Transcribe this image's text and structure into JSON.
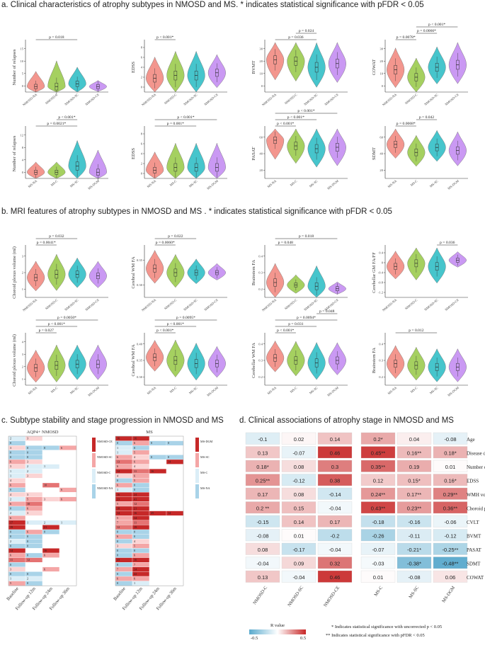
{
  "sections": {
    "a": "a. Clinical characteristics of atrophy subtypes in NMOSD and MS. * indicates statistical significance with pFDR < 0.05",
    "b": "b. MRI features of atrophy subtypes in NMOSD and MS . * indicates statistical significance with pFDR < 0.05",
    "c": "c. Subtype stability and stage progression in NMOSD and MS",
    "d": "d. Clinical associations of atrophy stage in NMOSD and MS"
  },
  "colors": {
    "g1": "#f28b82",
    "g2": "#9ccc4f",
    "g3": "#33bfc7",
    "g4": "#c58ef2"
  },
  "groups": {
    "nmosd_ce": [
      "NMOSD-NA",
      "NMOSD-C",
      "NMOSD-SC",
      "NMOSD-CE"
    ],
    "ms_dgm": [
      "MS-NA",
      "MS-C",
      "MS-SC",
      "MS-DGM"
    ]
  },
  "panels": [
    {
      "id": "a1",
      "ylabel": "Number of relapses",
      "groups": "nmosd_ce",
      "ylim": [
        0,
        18
      ],
      "yticks": [
        "0",
        "5",
        "10",
        "15"
      ],
      "medians": [
        2,
        2,
        3,
        2
      ],
      "spreads": [
        10,
        17,
        11,
        4
      ],
      "comparisons": [
        {
          "label": "p = 0.018",
          "from": 0,
          "to": 2
        }
      ]
    },
    {
      "id": "a2",
      "ylabel": "EDSS",
      "groups": "nmosd_ce",
      "ylim": [
        0,
        9
      ],
      "yticks": [
        "0",
        "2",
        "4",
        "6",
        "8"
      ],
      "medians": [
        2.5,
        3,
        3,
        3.5
      ],
      "spreads": [
        7,
        8,
        8,
        6
      ],
      "comparisons": [
        {
          "label": "p < 0.001*",
          "from": 0,
          "to": 1
        }
      ]
    },
    {
      "id": "a3",
      "ylabel": "BVMT",
      "groups": "nmosd_ce",
      "ylim": [
        0,
        40
      ],
      "yticks": [
        "0",
        "10",
        "20",
        "30"
      ],
      "medians": [
        26,
        25,
        20,
        23
      ],
      "spreads": [
        36,
        36,
        36,
        34
      ],
      "comparisons": [
        {
          "label": "p = 0.036",
          "from": 0,
          "to": 2
        },
        {
          "label": "p = 0.024",
          "from": 1,
          "to": 2
        }
      ]
    },
    {
      "id": "a4",
      "ylabel": "COWAT",
      "groups": "nmosd_ce",
      "ylim": [
        0,
        40
      ],
      "yticks": [
        "0",
        "10",
        "20",
        "30"
      ],
      "medians": [
        18,
        12,
        20,
        22
      ],
      "spreads": [
        32,
        28,
        30,
        34
      ],
      "comparisons": [
        {
          "label": "p = 0.0078*",
          "from": 0,
          "to": 1
        },
        {
          "label": "p = 0.0066*",
          "from": 1,
          "to": 2
        },
        {
          "label": "p < 0.001*",
          "from": 1,
          "to": 3
        }
      ]
    },
    {
      "id": "a5",
      "ylabel": "Number of relapses",
      "groups": "ms_dgm",
      "ylim": [
        0,
        16
      ],
      "yticks": [
        "0",
        "4",
        "8",
        "12"
      ],
      "medians": [
        2,
        2,
        4,
        2
      ],
      "spreads": [
        6,
        6,
        15,
        13
      ],
      "comparisons": [
        {
          "label": "p = 0.0021*",
          "from": 0,
          "to": 2
        },
        {
          "label": "p < 0.001*",
          "from": 1,
          "to": 2
        }
      ]
    },
    {
      "id": "a6",
      "ylabel": "EDSS",
      "groups": "ms_dgm",
      "ylim": [
        0,
        9
      ],
      "yticks": [
        "0",
        "2",
        "4",
        "6",
        "8"
      ],
      "medians": [
        1.5,
        2,
        2,
        2
      ],
      "spreads": [
        6,
        8,
        8,
        8
      ],
      "comparisons": [
        {
          "label": "p = 0.001*",
          "from": 0,
          "to": 2
        },
        {
          "label": "p < 0.001*",
          "from": 0,
          "to": 3
        }
      ]
    },
    {
      "id": "a7",
      "ylabel": "PASAT",
      "groups": "ms_dgm",
      "ylim": [
        0,
        70
      ],
      "yticks": [
        "20",
        "40",
        "60"
      ],
      "medians": [
        54,
        46,
        42,
        44
      ],
      "spreads": [
        60,
        55,
        58,
        58
      ],
      "comparisons": [
        {
          "label": "p < 0.001*",
          "from": 0,
          "to": 1
        },
        {
          "label": "p < 0.001*",
          "from": 0,
          "to": 2
        },
        {
          "label": "p < 0.001*",
          "from": 0,
          "to": 3
        }
      ]
    },
    {
      "id": "a8",
      "ylabel": "SDMT",
      "groups": "ms_dgm",
      "ylim": [
        0,
        80
      ],
      "yticks": [
        "20",
        "40",
        "60"
      ],
      "medians": [
        55,
        42,
        50,
        45
      ],
      "spreads": [
        50,
        50,
        50,
        55
      ],
      "comparisons": [
        {
          "label": "p = 0.0068*",
          "from": 0,
          "to": 1
        },
        {
          "label": "p = 0.042",
          "from": 1,
          "to": 2
        }
      ]
    },
    {
      "id": "b1",
      "ylabel": "Choroid plexus volume (ml)",
      "groups": "nmosd_ce",
      "ylim": [
        0.5,
        3.5
      ],
      "yticks": [
        "1",
        "2",
        "3"
      ],
      "medians": [
        1.7,
        1.9,
        1.9,
        1.8
      ],
      "spreads": [
        1.8,
        2.2,
        1.8,
        1.6
      ],
      "comparisons": [
        {
          "label": "p = 0.0041*",
          "from": 0,
          "to": 1
        },
        {
          "label": "p = 0.032",
          "from": 0,
          "to": 2
        }
      ]
    },
    {
      "id": "b2",
      "ylabel": "Cerebral WM FA",
      "groups": "nmosd_ce",
      "ylim": [
        0.28,
        0.4
      ],
      "yticks": [
        "0.30",
        "0.35"
      ],
      "medians": [
        0.35,
        0.34,
        0.34,
        0.34
      ],
      "spreads": [
        0.08,
        0.08,
        0.06,
        0.04
      ],
      "comparisons": [
        {
          "label": "p = 0.0060*",
          "from": 0,
          "to": 1
        },
        {
          "label": "p = 0.022",
          "from": 0,
          "to": 2
        }
      ]
    },
    {
      "id": "b3",
      "ylabel": "Brainstem FA",
      "groups": "nmosd_ce",
      "ylim": [
        0.1,
        0.5
      ],
      "yticks": [
        "0.2",
        "0.3",
        "0.4"
      ],
      "medians": [
        0.22,
        0.2,
        0.19,
        0.17
      ],
      "spreads": [
        0.28,
        0.15,
        0.3,
        0.1
      ],
      "comparisons": [
        {
          "label": "p = 0.048",
          "from": 0,
          "to": 1
        },
        {
          "label": "p = 0.018",
          "from": 0,
          "to": 3
        }
      ]
    },
    {
      "id": "b4",
      "ylabel": "Cerebellar GM FA/FF",
      "groups": "nmosd_ce",
      "ylim": [
        -1.2,
        0.4
      ],
      "yticks": [
        "-1.2",
        "-0.8",
        "-0.4",
        "0",
        "0.4"
      ],
      "medians": [
        -0.2,
        -0.1,
        -0.2,
        0.0
      ],
      "spreads": [
        0.9,
        1.2,
        1.2,
        0.5
      ],
      "comparisons": [
        {
          "label": "p = 0.036",
          "from": 2,
          "to": 3
        }
      ]
    },
    {
      "id": "b5",
      "ylabel": "Choroid plexus volume (ml)",
      "groups": "ms_dgm",
      "ylim": [
        0.5,
        4.5
      ],
      "yticks": [
        "1",
        "2",
        "3",
        "4"
      ],
      "medians": [
        1.9,
        2.1,
        2.2,
        2.2
      ],
      "spreads": [
        2.6,
        3.0,
        2.8,
        2.8
      ],
      "comparisons": [
        {
          "label": "p = 0.027",
          "from": 0,
          "to": 1
        },
        {
          "label": "p < 0.001*",
          "from": 0,
          "to": 2
        },
        {
          "label": "p = 0.0050*",
          "from": 0,
          "to": 3
        }
      ]
    },
    {
      "id": "b6",
      "ylabel": "Cerebral WM FA",
      "groups": "ms_dgm",
      "ylim": [
        0.26,
        0.42
      ],
      "yticks": [
        "0.30",
        "0.35",
        "0.40"
      ],
      "medians": [
        0.35,
        0.34,
        0.33,
        0.33
      ],
      "spreads": [
        0.1,
        0.12,
        0.12,
        0.1
      ],
      "comparisons": [
        {
          "label": "p < 0.001*",
          "from": 0,
          "to": 1
        },
        {
          "label": "p < 0.001*",
          "from": 0,
          "to": 2
        },
        {
          "label": "p = 0.0095*",
          "from": 0,
          "to": 3
        }
      ]
    },
    {
      "id": "b7",
      "ylabel": "Cerebellar WM FA",
      "groups": "ms_dgm",
      "ylim": [
        0.1,
        0.5
      ],
      "yticks": [
        "0.2",
        "0.3",
        "0.4"
      ],
      "medians": [
        0.32,
        0.3,
        0.28,
        0.3
      ],
      "spreads": [
        0.25,
        0.28,
        0.3,
        0.26
      ],
      "comparisons": [
        {
          "label": "p < 0.001*",
          "from": 0,
          "to": 1
        },
        {
          "label": "p = 0.031",
          "from": 0,
          "to": 2
        },
        {
          "label": "p = 0.0094*",
          "from": 0,
          "to": 3
        },
        {
          "label": "p = 0.048",
          "from": 2,
          "to": 3
        }
      ]
    },
    {
      "id": "b8",
      "ylabel": "Brainstem FA",
      "groups": "ms_dgm",
      "ylim": [
        0.15,
        0.45
      ],
      "yticks": [
        "0.2",
        "0.3",
        "0.4"
      ],
      "medians": [
        0.28,
        0.27,
        0.26,
        0.26
      ],
      "spreads": [
        0.2,
        0.2,
        0.2,
        0.2
      ],
      "comparisons": [
        {
          "label": "p = 0.012",
          "from": 0,
          "to": 2
        }
      ]
    }
  ],
  "heatmap_c": {
    "nmosd_title": "AQP4+ NMOSD",
    "ms_title": "MS",
    "columns": [
      "Baseline",
      "Follow-up 12m",
      "Follow-up 24m",
      "Follow-up 36m"
    ],
    "nmosd_legend": [
      "NMOSD-CE",
      "NMOSD-SC",
      "NMOSD-C",
      "NMOSD-NA"
    ],
    "ms_legend": [
      "MS-DGM",
      "MS-SC",
      "MS-C",
      "MS-NA"
    ],
    "nmosd_rows": [
      [
        "2",
        "3",
        "",
        ""
      ],
      [
        "0",
        "",
        "",
        ""
      ],
      [
        "3",
        "0",
        "0",
        "6"
      ],
      [
        "0",
        "0",
        "",
        ""
      ],
      [
        "0",
        "0",
        "",
        ""
      ],
      [
        "6",
        "3",
        "",
        ""
      ],
      [
        "3",
        "2",
        "1",
        ""
      ],
      [
        "1",
        "2",
        "",
        ""
      ],
      [
        "1",
        "3",
        "",
        ""
      ],
      [
        "4",
        "",
        "",
        ""
      ],
      [
        "6",
        "",
        "10",
        ""
      ],
      [
        "0",
        "",
        "",
        "6"
      ],
      [
        "4",
        "3",
        "",
        ""
      ],
      [
        "2",
        "5",
        "3",
        "6"
      ],
      [
        "6",
        "10",
        "",
        ""
      ],
      [
        "0",
        "6",
        "",
        ""
      ],
      [
        "2",
        "3",
        "",
        ""
      ],
      [
        "6",
        "",
        "",
        ""
      ],
      [
        "17",
        "1",
        "2",
        "1"
      ],
      [
        "19",
        "",
        "21",
        ""
      ],
      [
        "0",
        "6",
        "0",
        ""
      ],
      [
        "0",
        "0",
        "",
        ""
      ],
      [
        "2",
        "0",
        "",
        ""
      ],
      [
        "0",
        "0",
        "",
        ""
      ],
      [
        "14",
        "",
        "16",
        ""
      ],
      [
        "6",
        "0",
        "6",
        ""
      ],
      [
        "11",
        "12",
        "",
        ""
      ],
      [
        "0",
        "",
        "",
        ""
      ],
      [
        "3",
        "",
        "6",
        ""
      ],
      [
        "0",
        "0",
        "",
        ""
      ],
      [
        "1",
        "2",
        "",
        ""
      ],
      [
        "5",
        "0",
        "",
        ""
      ]
    ],
    "ms_rows": [
      [
        "16",
        "16",
        "",
        ""
      ],
      [
        "0",
        "6",
        "0",
        "0"
      ],
      [
        "1",
        "0",
        "",
        ""
      ],
      [
        "1",
        "5",
        "",
        ""
      ],
      [
        "6",
        "4",
        "0",
        "0"
      ],
      [
        "13",
        "6",
        "",
        "14"
      ],
      [
        "6",
        "4",
        "",
        ""
      ],
      [
        "14",
        "11",
        "16",
        ""
      ],
      [
        "4",
        "6",
        "",
        ""
      ],
      [
        "0",
        "5",
        "",
        ""
      ],
      [
        "6",
        "0",
        "",
        ""
      ],
      [
        "1",
        "0",
        "",
        ""
      ],
      [
        "16",
        "24",
        "",
        ""
      ],
      [
        "23",
        "41",
        "",
        ""
      ],
      [
        "5",
        "12",
        "",
        ""
      ],
      [
        "18",
        "21",
        "",
        ""
      ],
      [
        "14",
        "16",
        "25",
        "14"
      ],
      [
        "5",
        "14",
        "",
        ""
      ],
      [
        "7",
        "11",
        "",
        ""
      ],
      [
        "12",
        "19",
        "",
        ""
      ],
      [
        "0",
        "0",
        "",
        ""
      ],
      [
        "6",
        "0",
        "",
        ""
      ],
      [
        "0",
        "4",
        "",
        ""
      ],
      [
        "3",
        "5",
        "",
        ""
      ],
      [
        "0",
        "0",
        "",
        ""
      ],
      [
        "0",
        "6",
        "",
        ""
      ],
      [
        "23",
        "16",
        "",
        ""
      ],
      [
        "0",
        "7",
        "",
        ""
      ],
      [
        "7",
        "14",
        "",
        ""
      ],
      [
        "0",
        "22",
        "",
        ""
      ],
      [
        "6",
        "6",
        "",
        ""
      ],
      [
        "0",
        "1",
        "",
        ""
      ]
    ]
  },
  "heatmap_d": {
    "row_labels": [
      "Age",
      "Disease duration",
      "Number of relapse",
      "EDSS",
      "WMH volume",
      "Choroid plexus volume",
      "CVLT",
      "BVMT",
      "PASAT",
      "SDMT",
      "COWAT"
    ],
    "nmosd_cols": [
      "NMOSD-C",
      "NMOSD-SC",
      "NMOSD-CE"
    ],
    "ms_cols": [
      "MS-C",
      "MS-SC",
      "MS-DGM"
    ],
    "nmosd_values": [
      [
        -0.1,
        0.02,
        0.14
      ],
      [
        0.13,
        -0.07,
        0.46
      ],
      [
        0.18,
        0.08,
        0.3
      ],
      [
        0.25,
        -0.12,
        0.38
      ],
      [
        0.17,
        0.08,
        -0.14
      ],
      [
        0.2,
        0.15,
        -0.04
      ],
      [
        -0.15,
        0.14,
        0.17
      ],
      [
        -0.08,
        0.01,
        -0.2
      ],
      [
        0.08,
        -0.17,
        -0.04
      ],
      [
        -0.04,
        0.09,
        0.32
      ],
      [
        0.13,
        -0.04,
        0.46
      ]
    ],
    "nmosd_text": [
      [
        "-0.1",
        "0.02",
        "0.14"
      ],
      [
        "0.13",
        "-0.07",
        "0.46"
      ],
      [
        "0.18*",
        "0.08",
        "0.3"
      ],
      [
        "0.25**",
        "-0.12",
        "0.38"
      ],
      [
        "0.17",
        "0.08",
        "-0.14"
      ],
      [
        "0.2 **",
        "0.15",
        "-0.04"
      ],
      [
        "-0.15",
        "0.14",
        "0.17"
      ],
      [
        "-0.08",
        "0.01",
        "-0.2"
      ],
      [
        "0.08",
        "-0.17",
        "-0.04"
      ],
      [
        "-0.04",
        "0.09",
        "0.32"
      ],
      [
        "0.13",
        "-0.04",
        "0.46"
      ]
    ],
    "ms_values": [
      [
        0.2,
        0.04,
        -0.08
      ],
      [
        0.45,
        0.16,
        0.18
      ],
      [
        0.35,
        0.19,
        0.01
      ],
      [
        0.12,
        0.15,
        0.16
      ],
      [
        0.24,
        0.17,
        0.29
      ],
      [
        0.43,
        0.23,
        0.36
      ],
      [
        -0.18,
        -0.16,
        -0.06
      ],
      [
        -0.26,
        -0.11,
        -0.12
      ],
      [
        -0.07,
        -0.21,
        -0.25
      ],
      [
        -0.03,
        -0.38,
        -0.48
      ],
      [
        0.01,
        -0.08,
        0.06
      ]
    ],
    "ms_text": [
      [
        "0.2*",
        "0.04",
        "-0.08"
      ],
      [
        "0.45**",
        "0.16**",
        "0.18*"
      ],
      [
        "0.35**",
        "0.19",
        "0.01"
      ],
      [
        "0.12",
        "0.15*",
        "0.16*"
      ],
      [
        "0.24**",
        "0.17**",
        "0.29**"
      ],
      [
        "0.43**",
        "0.23**",
        "0.36**"
      ],
      [
        "-0.18",
        "-0.16",
        "-0.06"
      ],
      [
        "-0.26",
        "-0.11",
        "-0.12"
      ],
      [
        "-0.07",
        "-0.21*",
        "-0.25**"
      ],
      [
        "-0.03",
        "-0.38*",
        "-0.48**"
      ],
      [
        "0.01",
        "-0.08",
        "0.06"
      ]
    ],
    "legend_title": "R value",
    "legend_min": "-0.5",
    "legend_max": "0.5",
    "note1": "* Indicates statistical significance with uncorrected p < 0.05",
    "note2": "** Indicates statistical significance with pFDR < 0.05"
  }
}
